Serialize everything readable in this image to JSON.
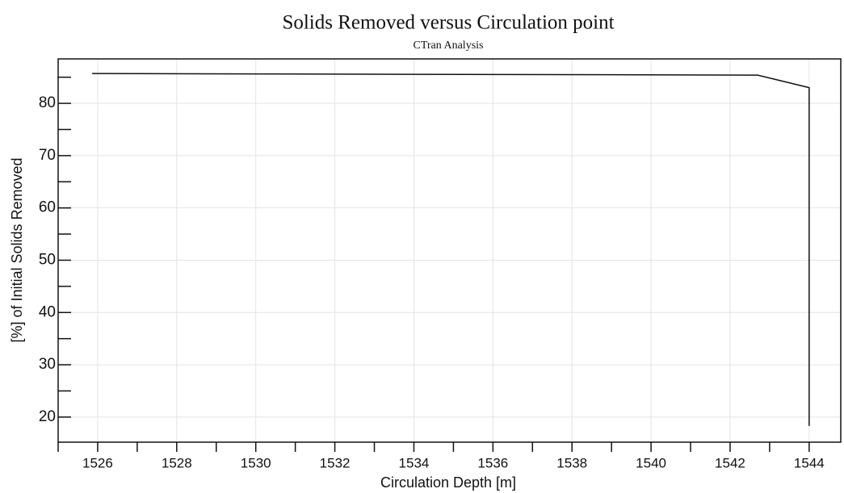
{
  "chart_data": {
    "type": "line",
    "title": "Solids Removed versus Circulation point",
    "subtitle": "CTran Analysis",
    "x_label": "Circulation Depth [m]",
    "y_label": "[%] of Initial Solids Removed",
    "x": [
      1525.86,
      1542.7,
      1544,
      1544
    ],
    "series": [
      {
        "name": "Solids Removed",
        "color": "#111111",
        "values": [
          85.7,
          85.4,
          83.0,
          18.3
        ]
      }
    ],
    "xlim": [
      1525,
      1544.8
    ],
    "ylim": [
      15.2,
      88.5
    ],
    "xticks": [
      1526,
      1528,
      1530,
      1532,
      1534,
      1536,
      1538,
      1540,
      1542,
      1544
    ],
    "yticks": [
      20,
      30,
      40,
      50,
      60,
      70,
      80
    ],
    "xminorticks": [
      1525,
      1527,
      1529,
      1531,
      1533,
      1535,
      1537,
      1539,
      1541,
      1543
    ],
    "yminorticks": [
      25,
      35,
      45,
      55,
      65,
      75,
      85
    ],
    "grid": true
  }
}
